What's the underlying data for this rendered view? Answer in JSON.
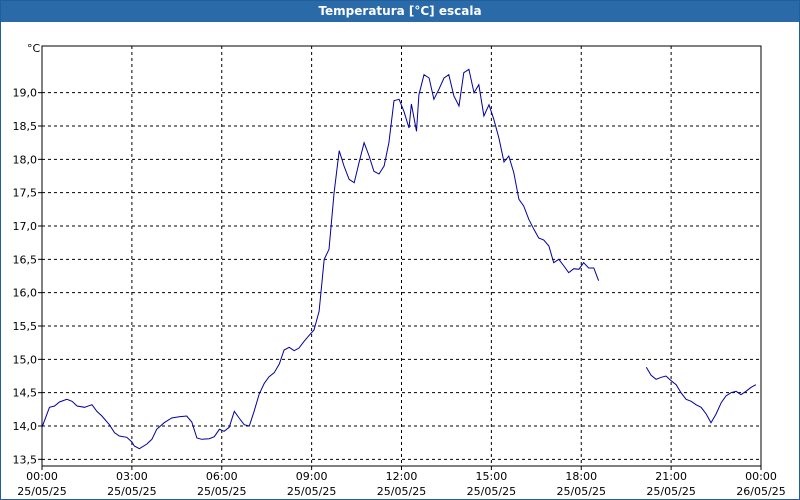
{
  "window": {
    "title": "Temperatura [°C] escala"
  },
  "colors": {
    "titlebar": "#2a6aa8",
    "line": "#0000a0",
    "grid": "#000000",
    "background": "#ffffff"
  },
  "chart_data": {
    "type": "line",
    "title": "Temperatura [°C] escala",
    "ylabel": "°C",
    "xlabel": "",
    "ylim": [
      13.4,
      19.7
    ],
    "yticks": [
      13.5,
      14.0,
      14.5,
      15.0,
      15.5,
      16.0,
      16.5,
      17.0,
      17.5,
      18.0,
      18.5,
      19.0
    ],
    "ytick_labels": [
      "13,5",
      "14,0",
      "14,5",
      "15,0",
      "15,5",
      "16,0",
      "16,5",
      "17,0",
      "17,5",
      "18,0",
      "18,5",
      "19,0"
    ],
    "xlim_hours": [
      0,
      24
    ],
    "xticks_hours": [
      0,
      3,
      6,
      9,
      12,
      15,
      18,
      21,
      24
    ],
    "xtick_labels": [
      [
        "00:00",
        "25/05/25"
      ],
      [
        "03:00",
        "25/05/25"
      ],
      [
        "06:00",
        "25/05/25"
      ],
      [
        "09:00",
        "25/05/25"
      ],
      [
        "12:00",
        "25/05/25"
      ],
      [
        "15:00",
        "25/05/25"
      ],
      [
        "18:00",
        "25/05/25"
      ],
      [
        "21:00",
        "25/05/25"
      ],
      [
        "00:00",
        "26/05/25"
      ]
    ],
    "grid": true,
    "series": [
      {
        "segments": [
          [
            [
              0.0,
              13.98
            ],
            [
              0.25,
              14.28
            ],
            [
              0.42,
              14.3
            ],
            [
              0.58,
              14.36
            ],
            [
              0.83,
              14.4
            ],
            [
              1.0,
              14.37
            ],
            [
              1.17,
              14.3
            ],
            [
              1.42,
              14.28
            ],
            [
              1.67,
              14.32
            ],
            [
              1.83,
              14.22
            ],
            [
              2.0,
              14.15
            ],
            [
              2.25,
              14.02
            ],
            [
              2.42,
              13.9
            ],
            [
              2.58,
              13.85
            ],
            [
              2.83,
              13.83
            ],
            [
              3.0,
              13.76
            ],
            [
              3.08,
              13.7
            ],
            [
              3.25,
              13.66
            ],
            [
              3.5,
              13.73
            ],
            [
              3.67,
              13.8
            ],
            [
              3.83,
              13.95
            ],
            [
              4.08,
              14.05
            ],
            [
              4.33,
              14.12
            ],
            [
              4.58,
              14.14
            ],
            [
              4.83,
              14.15
            ],
            [
              5.0,
              14.06
            ],
            [
              5.17,
              13.82
            ],
            [
              5.33,
              13.8
            ],
            [
              5.58,
              13.81
            ],
            [
              5.75,
              13.84
            ],
            [
              5.92,
              13.95
            ],
            [
              6.08,
              13.92
            ],
            [
              6.25,
              13.98
            ],
            [
              6.42,
              14.22
            ],
            [
              6.58,
              14.12
            ],
            [
              6.75,
              14.02
            ],
            [
              6.92,
              14.0
            ],
            [
              7.08,
              14.22
            ],
            [
              7.25,
              14.48
            ],
            [
              7.42,
              14.64
            ],
            [
              7.58,
              14.74
            ],
            [
              7.75,
              14.8
            ],
            [
              7.92,
              14.93
            ],
            [
              8.08,
              15.14
            ],
            [
              8.25,
              15.18
            ],
            [
              8.42,
              15.13
            ],
            [
              8.58,
              15.17
            ],
            [
              8.75,
              15.27
            ],
            [
              8.92,
              15.36
            ],
            [
              9.08,
              15.44
            ],
            [
              9.25,
              15.72
            ],
            [
              9.42,
              16.5
            ],
            [
              9.58,
              16.65
            ],
            [
              9.75,
              17.5
            ],
            [
              9.92,
              18.13
            ],
            [
              10.08,
              17.9
            ],
            [
              10.25,
              17.7
            ],
            [
              10.42,
              17.65
            ],
            [
              10.58,
              17.95
            ],
            [
              10.75,
              18.25
            ],
            [
              10.92,
              18.05
            ],
            [
              11.08,
              17.82
            ],
            [
              11.25,
              17.78
            ],
            [
              11.42,
              17.9
            ],
            [
              11.58,
              18.25
            ],
            [
              11.75,
              18.88
            ],
            [
              11.92,
              18.9
            ],
            [
              12.08,
              18.72
            ],
            [
              12.25,
              18.47
            ],
            [
              12.33,
              18.83
            ],
            [
              12.5,
              18.42
            ],
            [
              12.58,
              18.97
            ],
            [
              12.75,
              19.27
            ],
            [
              12.92,
              19.22
            ],
            [
              13.08,
              18.9
            ],
            [
              13.25,
              19.05
            ],
            [
              13.42,
              19.22
            ],
            [
              13.58,
              19.27
            ],
            [
              13.75,
              18.95
            ],
            [
              13.92,
              18.8
            ],
            [
              14.08,
              19.3
            ],
            [
              14.25,
              19.35
            ],
            [
              14.42,
              19.0
            ],
            [
              14.58,
              19.12
            ],
            [
              14.75,
              18.65
            ],
            [
              14.92,
              18.82
            ],
            [
              15.08,
              18.6
            ],
            [
              15.25,
              18.32
            ],
            [
              15.42,
              17.96
            ],
            [
              15.58,
              18.05
            ],
            [
              15.75,
              17.8
            ],
            [
              15.92,
              17.4
            ],
            [
              16.08,
              17.3
            ],
            [
              16.25,
              17.1
            ],
            [
              16.42,
              16.95
            ],
            [
              16.58,
              16.82
            ],
            [
              16.75,
              16.79
            ],
            [
              16.92,
              16.7
            ],
            [
              17.08,
              16.45
            ],
            [
              17.25,
              16.5
            ],
            [
              17.42,
              16.4
            ],
            [
              17.58,
              16.3
            ],
            [
              17.75,
              16.36
            ],
            [
              17.92,
              16.35
            ],
            [
              18.08,
              16.45
            ],
            [
              18.25,
              16.37
            ],
            [
              18.42,
              16.37
            ],
            [
              18.58,
              16.18
            ]
          ],
          [
            [
              20.17,
              14.88
            ],
            [
              20.33,
              14.76
            ],
            [
              20.5,
              14.7
            ],
            [
              20.67,
              14.73
            ],
            [
              20.83,
              14.75
            ],
            [
              21.0,
              14.68
            ],
            [
              21.17,
              14.62
            ],
            [
              21.33,
              14.5
            ],
            [
              21.5,
              14.4
            ],
            [
              21.67,
              14.37
            ],
            [
              21.83,
              14.32
            ],
            [
              22.0,
              14.28
            ],
            [
              22.17,
              14.18
            ],
            [
              22.33,
              14.05
            ],
            [
              22.5,
              14.18
            ],
            [
              22.67,
              14.35
            ],
            [
              22.83,
              14.45
            ],
            [
              23.0,
              14.5
            ],
            [
              23.17,
              14.52
            ],
            [
              23.33,
              14.47
            ],
            [
              23.5,
              14.52
            ],
            [
              23.67,
              14.58
            ],
            [
              23.83,
              14.62
            ]
          ]
        ]
      }
    ]
  }
}
